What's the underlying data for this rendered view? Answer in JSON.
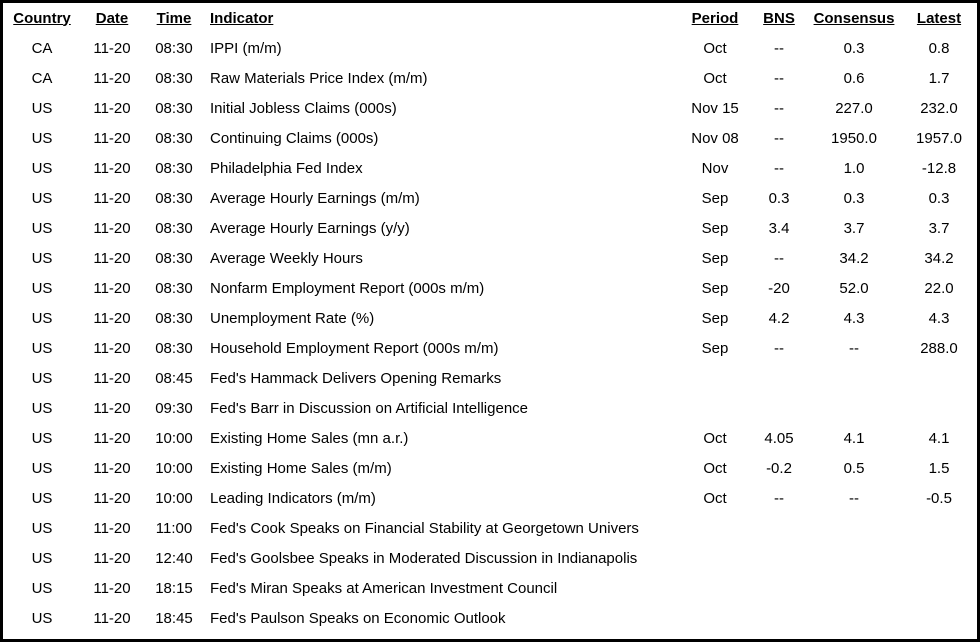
{
  "colors": {
    "border": "#000000",
    "background": "#ffffff",
    "text": "#000000"
  },
  "table": {
    "headers": [
      "Country",
      "Date",
      "Time",
      "Indicator",
      "Period",
      "BNS",
      "Consensus",
      "Latest"
    ],
    "rows": [
      [
        "CA",
        "11-20",
        "08:30",
        "IPPI (m/m)",
        "Oct",
        "--",
        "0.3",
        "0.8"
      ],
      [
        "CA",
        "11-20",
        "08:30",
        "Raw Materials Price Index (m/m)",
        "Oct",
        "--",
        "0.6",
        "1.7"
      ],
      [
        "US",
        "11-20",
        "08:30",
        "Initial Jobless Claims (000s)",
        "Nov 15",
        "--",
        "227.0",
        "232.0"
      ],
      [
        "US",
        "11-20",
        "08:30",
        "Continuing Claims (000s)",
        "Nov 08",
        "--",
        "1950.0",
        "1957.0"
      ],
      [
        "US",
        "11-20",
        "08:30",
        "Philadelphia Fed Index",
        "Nov",
        "--",
        "1.0",
        "-12.8"
      ],
      [
        "US",
        "11-20",
        "08:30",
        "Average Hourly Earnings (m/m)",
        "Sep",
        "0.3",
        "0.3",
        "0.3"
      ],
      [
        "US",
        "11-20",
        "08:30",
        "Average Hourly Earnings (y/y)",
        "Sep",
        "3.4",
        "3.7",
        "3.7"
      ],
      [
        "US",
        "11-20",
        "08:30",
        "Average Weekly Hours",
        "Sep",
        "--",
        "34.2",
        "34.2"
      ],
      [
        "US",
        "11-20",
        "08:30",
        "Nonfarm Employment Report (000s m/m)",
        "Sep",
        "-20",
        "52.0",
        "22.0"
      ],
      [
        "US",
        "11-20",
        "08:30",
        "Unemployment Rate (%)",
        "Sep",
        "4.2",
        "4.3",
        "4.3"
      ],
      [
        "US",
        "11-20",
        "08:30",
        "Household Employment Report (000s m/m)",
        "Sep",
        "--",
        "--",
        "288.0"
      ],
      [
        "US",
        "11-20",
        "08:45",
        "Fed's Hammack Delivers Opening Remarks",
        "",
        "",
        "",
        ""
      ],
      [
        "US",
        "11-20",
        "09:30",
        "Fed's Barr in Discussion on Artificial Intelligence",
        "",
        "",
        "",
        ""
      ],
      [
        "US",
        "11-20",
        "10:00",
        "Existing Home Sales (mn a.r.)",
        "Oct",
        "4.05",
        "4.1",
        "4.1"
      ],
      [
        "US",
        "11-20",
        "10:00",
        "Existing Home Sales (m/m)",
        "Oct",
        "-0.2",
        "0.5",
        "1.5"
      ],
      [
        "US",
        "11-20",
        "10:00",
        "Leading Indicators (m/m)",
        "Oct",
        "--",
        "--",
        "-0.5"
      ],
      [
        "US",
        "11-20",
        "11:00",
        "Fed's Cook Speaks on Financial Stability at Georgetown Univers",
        "",
        "",
        "",
        ""
      ],
      [
        "US",
        "11-20",
        "12:40",
        "Fed's Goolsbee Speaks in Moderated Discussion in Indianapolis",
        "",
        "",
        "",
        ""
      ],
      [
        "US",
        "11-20",
        "18:15",
        "Fed's Miran Speaks at American Investment Council",
        "",
        "",
        "",
        ""
      ],
      [
        "US",
        "11-20",
        "18:45",
        "Fed's Paulson Speaks on Economic Outlook",
        "",
        "",
        "",
        ""
      ]
    ],
    "column_keys": [
      "country",
      "date",
      "time",
      "indicator",
      "period",
      "bns",
      "consensus",
      "latest"
    ]
  }
}
